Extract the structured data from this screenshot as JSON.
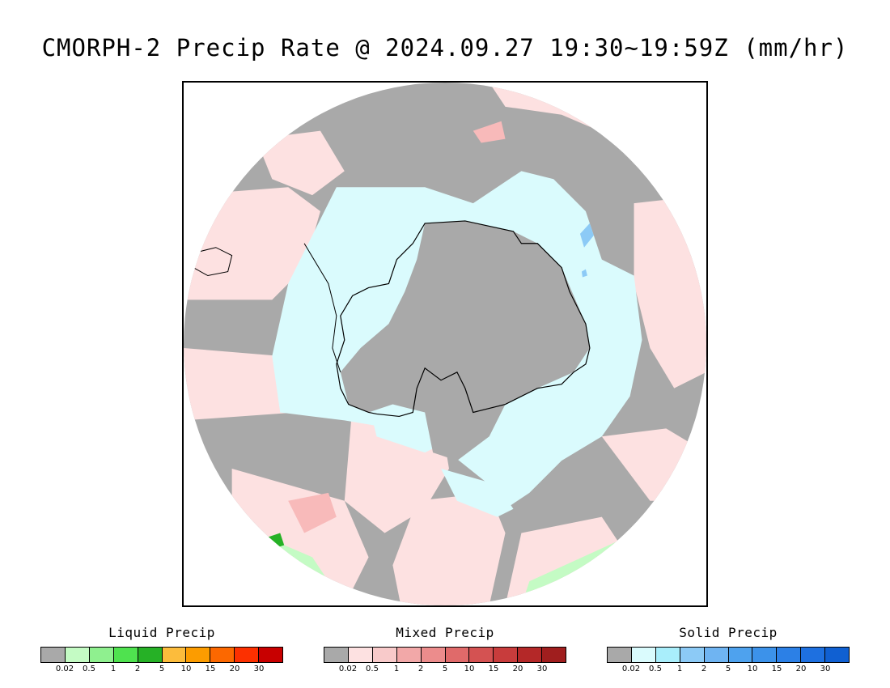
{
  "title": "CMORPH-2 Precip Rate @ 2024.09.27 19:30~19:59Z (mm/hr)",
  "map": {
    "projection": "south-polar-stereographic",
    "region": "Antarctica / Southern Ocean",
    "colors": {
      "no_precip": "#a9a9a9",
      "mixed_light": "#fde1e1",
      "solid_light": "#dafbfd",
      "solid_mid": "#a9eefb",
      "solid_blue": "#8ccaf6",
      "liquid_light": "#c4fbc4",
      "liquid_green": "#26b126",
      "mixed_mid": "#f8baba",
      "coastline": "#000000"
    }
  },
  "legends": [
    {
      "title": "Liquid Precip",
      "colors": [
        "#a9a9a9",
        "#c4fbc4",
        "#8ff08f",
        "#4fe24f",
        "#26b126",
        "#fcbc3c",
        "#fc9c00",
        "#fc6800",
        "#fc3000",
        "#c80000"
      ],
      "ticks": [
        "0.02",
        "0.5",
        "1",
        "2",
        "5",
        "10",
        "15",
        "20",
        "30"
      ]
    },
    {
      "title": "Mixed Precip",
      "colors": [
        "#a9a9a9",
        "#fde1e1",
        "#f8caca",
        "#f2a8a8",
        "#ec8c8c",
        "#e06a6a",
        "#d45252",
        "#c83c3c",
        "#b42828",
        "#a01e1e"
      ],
      "ticks": [
        "0.02",
        "0.5",
        "1",
        "2",
        "5",
        "10",
        "15",
        "20",
        "30"
      ]
    },
    {
      "title": "Solid Precip",
      "colors": [
        "#a9a9a9",
        "#dafbfd",
        "#a9eefb",
        "#8ccaf6",
        "#6fb4f2",
        "#4ea2ee",
        "#3c92ea",
        "#2c80e6",
        "#1e70e0",
        "#1060d2"
      ],
      "ticks": [
        "0.02",
        "0.5",
        "1",
        "2",
        "5",
        "10",
        "15",
        "20",
        "30"
      ]
    }
  ]
}
